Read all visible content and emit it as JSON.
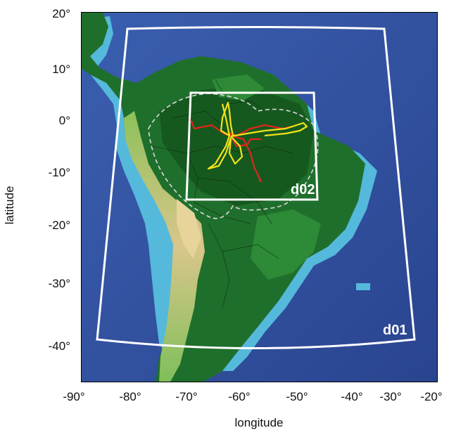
{
  "map": {
    "x_axis": {
      "label": "longitude",
      "ticks": [
        "-90°",
        "-80°",
        "-70°",
        "-60°",
        "-50°",
        "-40°",
        "-30°",
        "-20°"
      ]
    },
    "y_axis": {
      "label": "latitude",
      "ticks": [
        "20°",
        "10°",
        "0°",
        "-10°",
        "-20°",
        "-30°",
        "-40°"
      ]
    },
    "domains": {
      "d01_label": "d01",
      "d02_label": "d02"
    },
    "colors": {
      "ocean_deep": "#2f4c9a",
      "ocean_shelf": "#4fb3d9",
      "lowland": "#1f6b2a",
      "upland": "#7bb84a",
      "highland": "#d8c48a",
      "domain_outline": "#ffffff",
      "flight_red": "#e0261b",
      "flight_yellow": "#f5e61a",
      "basin_outline": "#dcdcdc"
    }
  }
}
